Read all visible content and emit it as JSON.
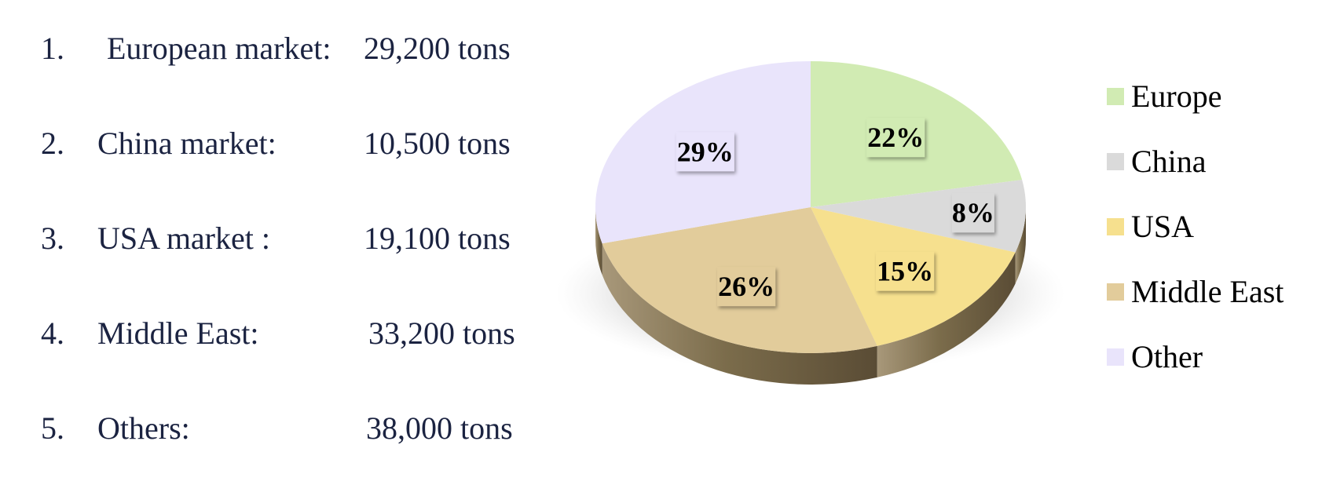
{
  "market_list": [
    {
      "number": "1.",
      "label": "European market:",
      "value": "29,200 tons"
    },
    {
      "number": "2.",
      "label": "China market:",
      "value": "10,500 tons"
    },
    {
      "number": "3.",
      "label": "USA market :",
      "value": "19,100 tons"
    },
    {
      "number": "4.",
      "label": "Middle East:",
      "value": "33,200 tons"
    },
    {
      "number": "5.",
      "label": "Others:",
      "value": "38,000 tons"
    }
  ],
  "chart_data": {
    "type": "pie",
    "style": "3d",
    "legend_position": "right",
    "categories": [
      "Europe",
      "China",
      "USA",
      "Middle East",
      "Other"
    ],
    "values": [
      22,
      8,
      15,
      26,
      29
    ],
    "value_labels": [
      "22%",
      "8%",
      "15%",
      "26%",
      "29%"
    ],
    "colors": [
      "#d1ebb3",
      "#dadada",
      "#f6e08e",
      "#e2cc9b",
      "#e9e4fb"
    ]
  }
}
